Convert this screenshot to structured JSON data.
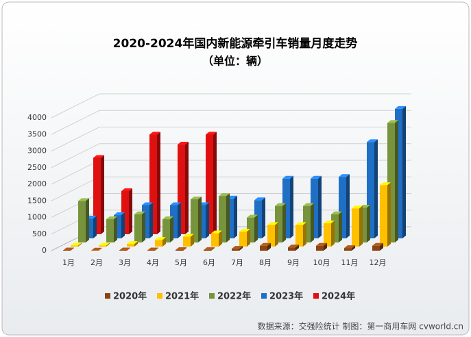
{
  "chart_data": {
    "type": "bar3d",
    "title": "2020-2024年国内新能源牵引车销量月度走势",
    "subtitle": "（单位：辆）",
    "source": "数据来源：交强险统计  制图：第一商用车网 cvworld.cn",
    "categories": [
      "1月",
      "2月",
      "3月",
      "4月",
      "5月",
      "6月",
      "7月",
      "8月",
      "9月",
      "10月",
      "11月",
      "12月"
    ],
    "series": [
      {
        "name": "2020年",
        "color": "#8b4513",
        "values": [
          10,
          5,
          10,
          10,
          20,
          20,
          60,
          150,
          100,
          150,
          80,
          150
        ]
      },
      {
        "name": "2021年",
        "color": "#ffc000",
        "values": [
          30,
          30,
          80,
          200,
          300,
          400,
          450,
          650,
          650,
          700,
          1150,
          1850
        ]
      },
      {
        "name": "2022年",
        "color": "#77933c",
        "values": [
          1250,
          700,
          850,
          700,
          1300,
          1400,
          750,
          1100,
          1100,
          850,
          1050,
          3600
        ]
      },
      {
        "name": "2023年",
        "color": "#1f6fc5",
        "values": [
          600,
          700,
          1000,
          1000,
          1000,
          1200,
          1150,
          1800,
          1800,
          1850,
          2900,
          3900
        ]
      },
      {
        "name": "2024年",
        "color": "#e01010",
        "values": [
          2300,
          1300,
          3000,
          2700,
          3000,
          null,
          null,
          null,
          null,
          null,
          null,
          null
        ]
      }
    ],
    "ylim": [
      0,
      4000
    ],
    "yticks": [
      0,
      500,
      1000,
      1500,
      2000,
      2500,
      3000,
      3500,
      4000
    ],
    "grid": true
  }
}
